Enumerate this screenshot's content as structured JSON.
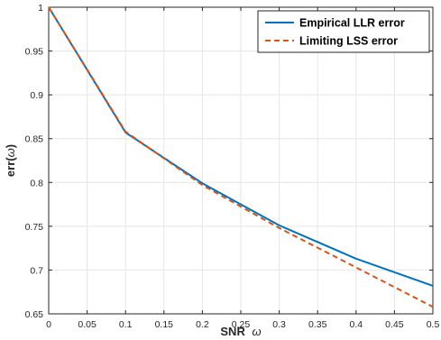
{
  "chart_data": {
    "type": "line",
    "title": "",
    "xlabel": "SNR",
    "xlabel_symbol": "ω",
    "ylabel_prefix": "err(",
    "ylabel_symbol": "ω",
    "ylabel_suffix": ")",
    "xlim": [
      0,
      0.5
    ],
    "ylim": [
      0.65,
      1.0
    ],
    "xticks": [
      "0",
      "0.05",
      "0.1",
      "0.15",
      "0.2",
      "0.25",
      "0.3",
      "0.35",
      "0.4",
      "0.45",
      "0.5"
    ],
    "yticks": [
      "0.65",
      "0.7",
      "0.75",
      "0.8",
      "0.85",
      "0.9",
      "0.95",
      "1"
    ],
    "grid": true,
    "legend_position": "top-right",
    "series": [
      {
        "name": "Empirical LLR error",
        "color": "#0072BD",
        "style": "solid",
        "x": [
          0,
          0.1,
          0.2,
          0.3,
          0.4,
          0.5
        ],
        "y": [
          1.0,
          0.857,
          0.799,
          0.751,
          0.713,
          0.682
        ]
      },
      {
        "name": "Limiting LSS error",
        "color": "#D95319",
        "style": "dashed",
        "x": [
          0,
          0.1,
          0.2,
          0.3,
          0.4,
          0.5
        ],
        "y": [
          1.0,
          0.858,
          0.797,
          0.748,
          0.703,
          0.658
        ]
      }
    ]
  }
}
